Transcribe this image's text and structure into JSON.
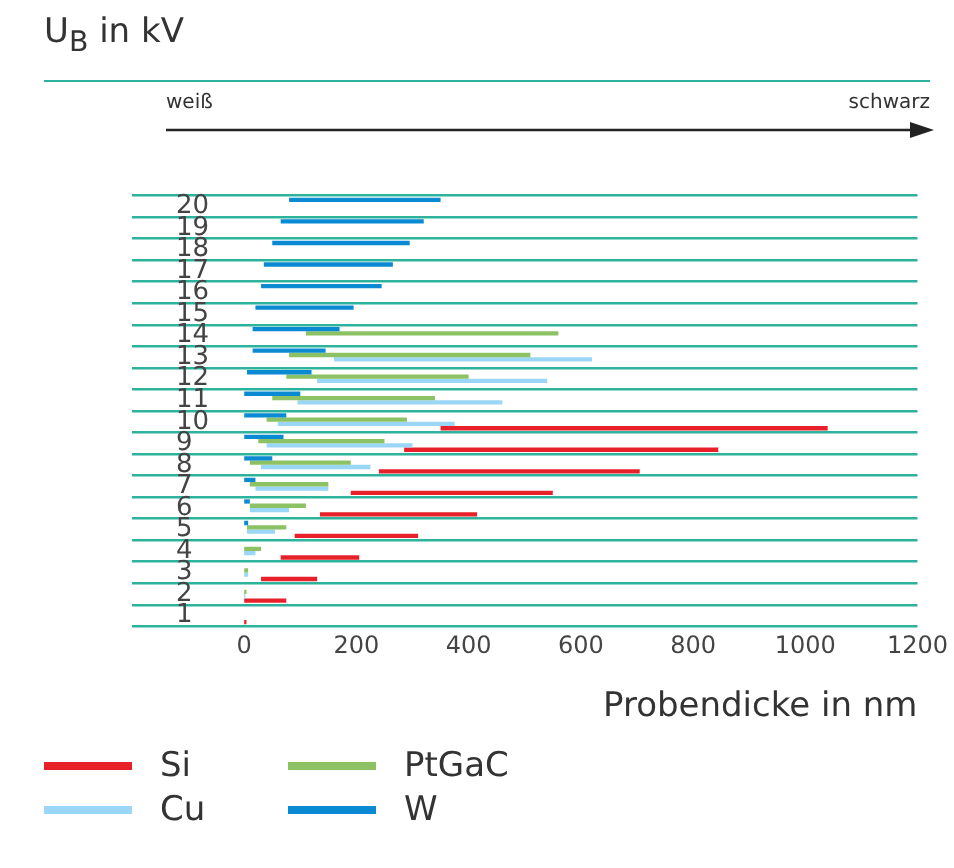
{
  "chart_data": {
    "type": "bar",
    "orientation": "horizontal",
    "ylabel": "U$_{B}$ in kV",
    "xlabel": "Probendicke in nm",
    "annotations": [
      "weiß",
      "schwarz"
    ],
    "categories": [
      "20",
      "19",
      "18",
      "17",
      "16",
      "15",
      "14",
      "13",
      "12",
      "11",
      "10",
      "9",
      "8",
      "7",
      "6",
      "5",
      "4",
      "3",
      "2",
      "1"
    ],
    "series": [
      {
        "name": "W",
        "color": "#0a8ad2",
        "base": [
          80,
          65,
          50,
          35,
          30,
          20,
          15,
          15,
          5,
          0,
          0,
          0,
          0,
          0,
          0,
          0,
          null,
          null,
          null,
          null
        ],
        "values": [
          270,
          255,
          245,
          230,
          215,
          175,
          155,
          130,
          115,
          100,
          75,
          70,
          50,
          20,
          10,
          7,
          null,
          null,
          null,
          null
        ]
      },
      {
        "name": "PtGaC",
        "color": "#8cc263",
        "base": [
          null,
          null,
          null,
          null,
          null,
          null,
          110,
          80,
          75,
          50,
          40,
          25,
          10,
          10,
          10,
          5,
          0,
          0,
          0,
          null
        ],
        "values": [
          null,
          null,
          null,
          null,
          null,
          null,
          450,
          430,
          325,
          290,
          250,
          225,
          180,
          140,
          100,
          70,
          30,
          7,
          4,
          null
        ]
      },
      {
        "name": "Cu",
        "color": "#9ad6f5",
        "base": [
          null,
          null,
          null,
          null,
          null,
          null,
          null,
          160,
          130,
          95,
          60,
          40,
          30,
          20,
          10,
          5,
          0,
          0,
          0,
          null
        ],
        "values": [
          null,
          null,
          null,
          null,
          null,
          null,
          null,
          460,
          410,
          365,
          315,
          260,
          195,
          130,
          70,
          50,
          20,
          7,
          2,
          null
        ]
      },
      {
        "name": "Si",
        "color": "#e8202a",
        "base": [
          null,
          null,
          null,
          null,
          null,
          null,
          null,
          null,
          null,
          null,
          350,
          285,
          240,
          190,
          135,
          90,
          65,
          30,
          0,
          0
        ],
        "values": [
          null,
          null,
          null,
          null,
          null,
          null,
          null,
          null,
          null,
          null,
          690,
          560,
          465,
          360,
          280,
          220,
          140,
          100,
          75,
          4
        ]
      }
    ],
    "xlim": [
      -200,
      1200
    ],
    "xticks": [
      0,
      200,
      400,
      600,
      800,
      1000,
      1200
    ],
    "grid": "y",
    "legend": "bottom"
  }
}
